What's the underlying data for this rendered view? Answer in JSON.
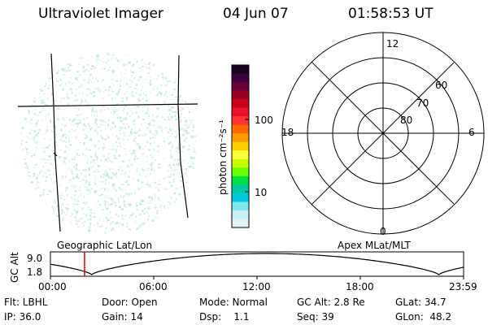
{
  "header": {
    "instrument": "Ultraviolet Imager",
    "date": "04 Jun 07",
    "time": "01:58:53 UT"
  },
  "colorbar": {
    "label": "photon cm⁻²s⁻¹",
    "ticks": [
      "100",
      "10"
    ],
    "colors": [
      "#1a0020",
      "#3a0040",
      "#6a0035",
      "#9a0020",
      "#c80018",
      "#e8102a",
      "#ff3333",
      "#ff6a00",
      "#ff9a00",
      "#ffcf00",
      "#ffff3c",
      "#c8ff00",
      "#6aff00",
      "#00e040",
      "#00c8a0",
      "#00c8e0",
      "#80e8f0",
      "#c8f0f0",
      "#e0f4f4"
    ]
  },
  "polar_grid": {
    "mlt_labels": [
      "12",
      "18",
      "6",
      "0"
    ],
    "lat_labels": [
      "60",
      "70",
      "80"
    ]
  },
  "timeline": {
    "y_axis_title": "GC Alt",
    "y_ticks": [
      "9.0",
      "1.8"
    ],
    "left_label": "Geographic Lat/Lon",
    "right_label": "Apex MLat/MLT",
    "x_ticks": [
      "00:00",
      "06:00",
      "12:00",
      "18:00",
      "23:59"
    ],
    "current_time_fraction": 0.0826
  },
  "status": {
    "row1": {
      "flt": "Flt: LBHL",
      "door": "Door: Open",
      "mode": "Mode: Normal",
      "gcalt": "GC Alt: 2.8 Re",
      "glat": "GLat: 34.7"
    },
    "row2": {
      "ip": "IP: 36.0",
      "gain": "Gain: 14",
      "dsp": "Dsp:    1.1",
      "seq": "Seq: 39",
      "glon": "GLon:  48.2"
    }
  },
  "colors": {
    "speckle": "#bfe3dc",
    "marker": "#e00000"
  }
}
